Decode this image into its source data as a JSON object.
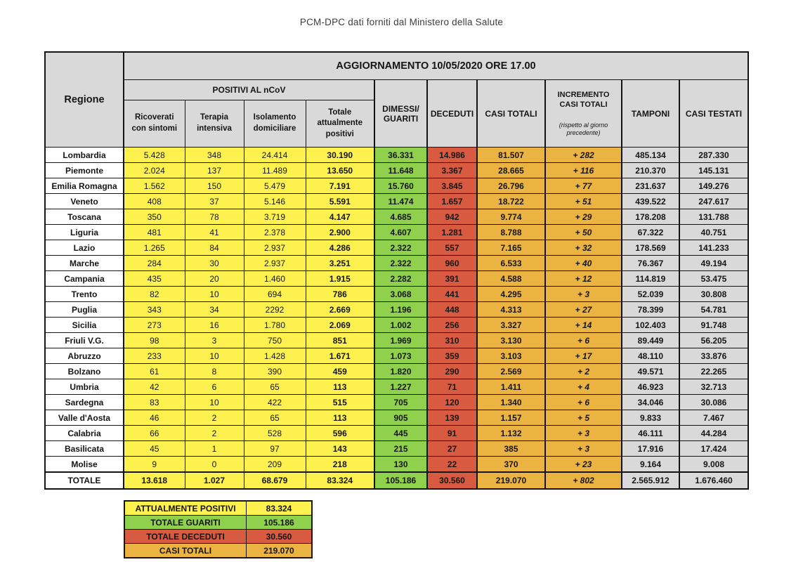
{
  "page_title": "PCM-DPC dati forniti dal Ministero della Salute",
  "colors": {
    "positivi_yellow": "#FCF14F",
    "guariti_green": "#8FD04D",
    "deceduti_red": "#D85A40",
    "casi_totali_amber": "#EBB341",
    "header_gray": "#D9D9D9",
    "border_black": "#141414"
  },
  "chart_data": {
    "type": "table",
    "banner": "AGGIORNAMENTO 10/05/2020 ORE 17.00",
    "positivi_group_label": "POSITIVI AL nCoV",
    "columns": [
      "Regione",
      "Ricoverati\ncon sintomi",
      "Terapia\nintensiva",
      "Isolamento\ndomiciliare",
      "Totale\nattualmente\npositivi",
      "DIMESSI/\nGUARITI",
      "DECEDUTI",
      "CASI TOTALI",
      "INCREMENTO\nCASI  TOTALI",
      "TAMPONI",
      "CASI TESTATI"
    ],
    "incremento_note": "(rispetto al giorno precedente)",
    "rows": [
      {
        "region": "Lombardia",
        "ricoverati": "5.428",
        "terapia": "348",
        "isolamento": "24.414",
        "attualmente_positivi": "30.190",
        "guariti": "36.331",
        "deceduti": "14.986",
        "casi_totali": "81.507",
        "incremento": "+ 282",
        "tamponi": "485.134",
        "casi_testati": "287.330"
      },
      {
        "region": "Piemonte",
        "ricoverati": "2.024",
        "terapia": "137",
        "isolamento": "11.489",
        "attualmente_positivi": "13.650",
        "guariti": "11.648",
        "deceduti": "3.367",
        "casi_totali": "28.665",
        "incremento": "+ 116",
        "tamponi": "210.370",
        "casi_testati": "145.131"
      },
      {
        "region": "Emilia Romagna",
        "ricoverati": "1.562",
        "terapia": "150",
        "isolamento": "5.479",
        "attualmente_positivi": "7.191",
        "guariti": "15.760",
        "deceduti": "3.845",
        "casi_totali": "26.796",
        "incremento": "+ 77",
        "tamponi": "231.637",
        "casi_testati": "149.276"
      },
      {
        "region": "Veneto",
        "ricoverati": "408",
        "terapia": "37",
        "isolamento": "5.146",
        "attualmente_positivi": "5.591",
        "guariti": "11.474",
        "deceduti": "1.657",
        "casi_totali": "18.722",
        "incremento": "+ 51",
        "tamponi": "439.522",
        "casi_testati": "247.617"
      },
      {
        "region": "Toscana",
        "ricoverati": "350",
        "terapia": "78",
        "isolamento": "3.719",
        "attualmente_positivi": "4.147",
        "guariti": "4.685",
        "deceduti": "942",
        "casi_totali": "9.774",
        "incremento": "+ 29",
        "tamponi": "178.208",
        "casi_testati": "131.788"
      },
      {
        "region": "Liguria",
        "ricoverati": "481",
        "terapia": "41",
        "isolamento": "2.378",
        "attualmente_positivi": "2.900",
        "guariti": "4.607",
        "deceduti": "1.281",
        "casi_totali": "8.788",
        "incremento": "+ 50",
        "tamponi": "67.322",
        "casi_testati": "40.751"
      },
      {
        "region": "Lazio",
        "ricoverati": "1.265",
        "terapia": "84",
        "isolamento": "2.937",
        "attualmente_positivi": "4.286",
        "guariti": "2.322",
        "deceduti": "557",
        "casi_totali": "7.165",
        "incremento": "+ 32",
        "tamponi": "178.569",
        "casi_testati": "141.233"
      },
      {
        "region": "Marche",
        "ricoverati": "284",
        "terapia": "30",
        "isolamento": "2.937",
        "attualmente_positivi": "3.251",
        "guariti": "2.322",
        "deceduti": "960",
        "casi_totali": "6.533",
        "incremento": "+ 40",
        "tamponi": "76.367",
        "casi_testati": "49.194"
      },
      {
        "region": "Campania",
        "ricoverati": "435",
        "terapia": "20",
        "isolamento": "1.460",
        "attualmente_positivi": "1.915",
        "guariti": "2.282",
        "deceduti": "391",
        "casi_totali": "4.588",
        "incremento": "+ 12",
        "tamponi": "114.819",
        "casi_testati": "53.475"
      },
      {
        "region": "Trento",
        "ricoverati": "82",
        "terapia": "10",
        "isolamento": "694",
        "attualmente_positivi": "786",
        "guariti": "3.068",
        "deceduti": "441",
        "casi_totali": "4.295",
        "incremento": "+ 3",
        "tamponi": "52.039",
        "casi_testati": "30.808"
      },
      {
        "region": "Puglia",
        "ricoverati": "343",
        "terapia": "34",
        "isolamento": "2292",
        "attualmente_positivi": "2.669",
        "guariti": "1.196",
        "deceduti": "448",
        "casi_totali": "4.313",
        "incremento": "+ 27",
        "tamponi": "78.399",
        "casi_testati": "54.781"
      },
      {
        "region": "Sicilia",
        "ricoverati": "273",
        "terapia": "16",
        "isolamento": "1.780",
        "attualmente_positivi": "2.069",
        "guariti": "1.002",
        "deceduti": "256",
        "casi_totali": "3.327",
        "incremento": "+ 14",
        "tamponi": "102.403",
        "casi_testati": "91.748"
      },
      {
        "region": "Friuli V.G.",
        "ricoverati": "98",
        "terapia": "3",
        "isolamento": "750",
        "attualmente_positivi": "851",
        "guariti": "1.969",
        "deceduti": "310",
        "casi_totali": "3.130",
        "incremento": "+ 6",
        "tamponi": "89.449",
        "casi_testati": "56.205"
      },
      {
        "region": "Abruzzo",
        "ricoverati": "233",
        "terapia": "10",
        "isolamento": "1.428",
        "attualmente_positivi": "1.671",
        "guariti": "1.073",
        "deceduti": "359",
        "casi_totali": "3.103",
        "incremento": "+ 17",
        "tamponi": "48.110",
        "casi_testati": "33.876"
      },
      {
        "region": "Bolzano",
        "ricoverati": "61",
        "terapia": "8",
        "isolamento": "390",
        "attualmente_positivi": "459",
        "guariti": "1.820",
        "deceduti": "290",
        "casi_totali": "2.569",
        "incremento": "+ 2",
        "tamponi": "49.571",
        "casi_testati": "22.265"
      },
      {
        "region": "Umbria",
        "ricoverati": "42",
        "terapia": "6",
        "isolamento": "65",
        "attualmente_positivi": "113",
        "guariti": "1.227",
        "deceduti": "71",
        "casi_totali": "1.411",
        "incremento": "+ 4",
        "tamponi": "46.923",
        "casi_testati": "32.713"
      },
      {
        "region": "Sardegna",
        "ricoverati": "83",
        "terapia": "10",
        "isolamento": "422",
        "attualmente_positivi": "515",
        "guariti": "705",
        "deceduti": "120",
        "casi_totali": "1.340",
        "incremento": "+ 6",
        "tamponi": "34.046",
        "casi_testati": "30.086"
      },
      {
        "region": "Valle d'Aosta",
        "ricoverati": "46",
        "terapia": "2",
        "isolamento": "65",
        "attualmente_positivi": "113",
        "guariti": "905",
        "deceduti": "139",
        "casi_totali": "1.157",
        "incremento": "+ 5",
        "tamponi": "9.833",
        "casi_testati": "7.467"
      },
      {
        "region": "Calabria",
        "ricoverati": "66",
        "terapia": "2",
        "isolamento": "528",
        "attualmente_positivi": "596",
        "guariti": "445",
        "deceduti": "91",
        "casi_totali": "1.132",
        "incremento": "+ 3",
        "tamponi": "46.111",
        "casi_testati": "44.284"
      },
      {
        "region": "Basilicata",
        "ricoverati": "45",
        "terapia": "1",
        "isolamento": "97",
        "attualmente_positivi": "143",
        "guariti": "215",
        "deceduti": "27",
        "casi_totali": "385",
        "incremento": "+ 3",
        "tamponi": "17.916",
        "casi_testati": "17.424"
      },
      {
        "region": "Molise",
        "ricoverati": "9",
        "terapia": "0",
        "isolamento": "209",
        "attualmente_positivi": "218",
        "guariti": "130",
        "deceduti": "22",
        "casi_totali": "370",
        "incremento": "+ 23",
        "tamponi": "9.164",
        "casi_testati": "9.008"
      }
    ],
    "totals": {
      "region": "TOTALE",
      "ricoverati": "13.618",
      "terapia": "1.027",
      "isolamento": "68.679",
      "attualmente_positivi": "83.324",
      "guariti": "105.186",
      "deceduti": "30.560",
      "casi_totali": "219.070",
      "incremento": "+ 802",
      "tamponi": "2.565.912",
      "casi_testati": "1.676.460"
    },
    "summary": [
      {
        "label": "ATTUALMENTE POSITIVI",
        "value": "83.324",
        "color": "yellow"
      },
      {
        "label": "TOTALE GUARITI",
        "value": "105.186",
        "color": "green"
      },
      {
        "label": "TOTALE DECEDUTI",
        "value": "30.560",
        "color": "red"
      },
      {
        "label": "CASI TOTALI",
        "value": "219.070",
        "color": "amber"
      }
    ]
  }
}
